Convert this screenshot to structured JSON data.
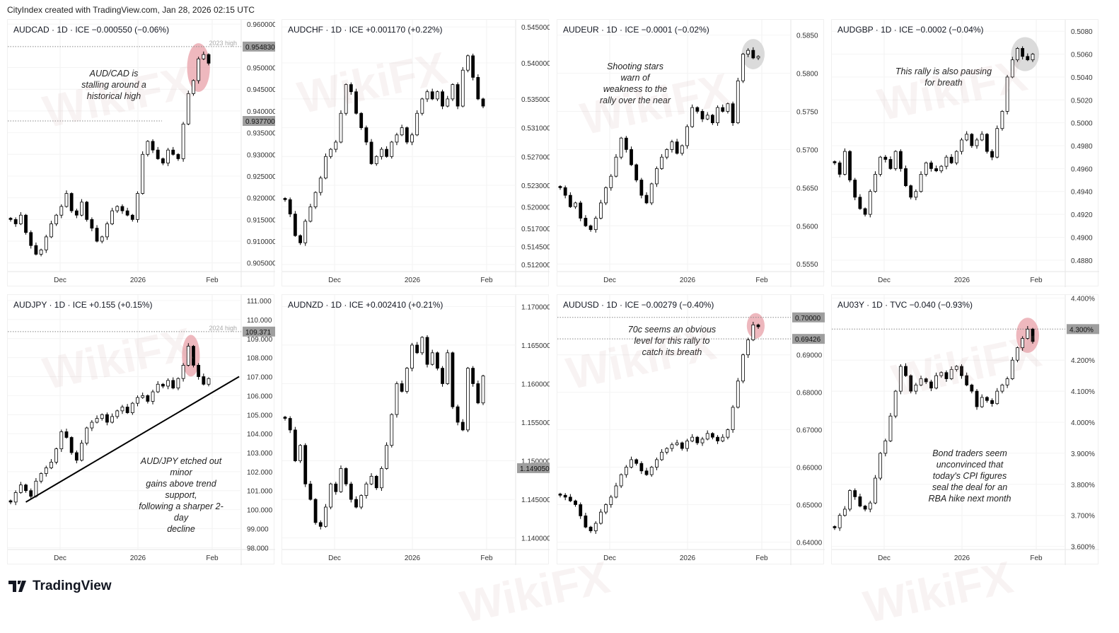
{
  "header": {
    "credit": "CityIndex created with TradingView.com, Jan 28, 2026 02:15 UTC"
  },
  "footer": {
    "logo_text": "TradingView"
  },
  "watermark": {
    "text": "WikiFX"
  },
  "time_axis": [
    "Dec",
    "2026",
    "Feb"
  ],
  "colors": {
    "up_body": "#ffffff",
    "down_body": "#000000",
    "wick": "#000000",
    "badge_bg": "#9e9e9e",
    "highlight_red": "#e8a0a8",
    "highlight_grey": "#cfcfcf",
    "trendline": "#000000"
  },
  "chart_data": [
    {
      "type": "candlestick",
      "title": "AUDCAD · 1D · ICE  −0.000550 (−0.06%)",
      "ylim": [
        0.903,
        0.961
      ],
      "closes": [
        0.915,
        0.914,
        0.916,
        0.912,
        0.909,
        0.907,
        0.908,
        0.911,
        0.914,
        0.916,
        0.918,
        0.921,
        0.917,
        0.916,
        0.919,
        0.915,
        0.913,
        0.91,
        0.911,
        0.914,
        0.917,
        0.918,
        0.917,
        0.916,
        0.915,
        0.921,
        0.93,
        0.933,
        0.931,
        0.929,
        0.928,
        0.931,
        0.93,
        0.929,
        0.937,
        0.944,
        0.947,
        0.952,
        0.953,
        0.951
      ],
      "yticks": [
        "0.960000",
        "0.950000",
        "0.945000",
        "0.940000",
        "0.935000",
        "0.930000",
        "0.925000",
        "0.920000",
        "0.915000",
        "0.910000",
        "0.905000"
      ],
      "badges": [
        "0.954830",
        "0.937700"
      ],
      "levels": [
        {
          "value": 0.95483,
          "label": "2023 high",
          "full": true
        },
        {
          "value": 0.9377,
          "label": "",
          "full": false
        }
      ],
      "highlight": {
        "from": 36,
        "to": 38,
        "color": "red"
      },
      "annotation": "AUD/CAD is\nstalling around a\nhistorical high"
    },
    {
      "type": "candlestick",
      "title": "AUDCHF · 1D · ICE  +0.001170 (+0.22%)",
      "ylim": [
        0.511,
        0.546
      ],
      "closes": [
        0.521,
        0.519,
        0.516,
        0.515,
        0.518,
        0.52,
        0.522,
        0.524,
        0.527,
        0.528,
        0.529,
        0.533,
        0.537,
        0.536,
        0.533,
        0.531,
        0.529,
        0.526,
        0.527,
        0.528,
        0.527,
        0.529,
        0.53,
        0.531,
        0.529,
        0.53,
        0.533,
        0.535,
        0.536,
        0.535,
        0.536,
        0.534,
        0.535,
        0.537,
        0.534,
        0.539,
        0.541,
        0.538,
        0.535,
        0.534
      ],
      "yticks": [
        "0.545000",
        "0.540000",
        "0.535000",
        "0.531000",
        "0.527000",
        "0.523000",
        "0.520000",
        "0.517000",
        "0.514500",
        "0.512000"
      ],
      "badges": [],
      "levels": [],
      "highlight": null,
      "annotation": ""
    },
    {
      "type": "candlestick",
      "title": "AUDEUR · 1D · ICE  −0.0001 (−0.02%)",
      "ylim": [
        0.554,
        0.587
      ],
      "closes": [
        0.565,
        0.564,
        0.5625,
        0.563,
        0.561,
        0.56,
        0.5595,
        0.561,
        0.563,
        0.565,
        0.5665,
        0.569,
        0.5715,
        0.57,
        0.568,
        0.566,
        0.564,
        0.563,
        0.5655,
        0.5675,
        0.569,
        0.57,
        0.571,
        0.5695,
        0.5705,
        0.573,
        0.5755,
        0.575,
        0.574,
        0.5745,
        0.5735,
        0.5755,
        0.575,
        0.576,
        0.5735,
        0.579,
        0.5825,
        0.583,
        0.582,
        0.5822
      ],
      "yticks": [
        "0.5850",
        "0.5800",
        "0.5750",
        "0.5700",
        "0.5650",
        "0.5600",
        "0.5550"
      ],
      "badges": [],
      "levels": [],
      "highlight": {
        "from": 37,
        "to": 39,
        "color": "grey"
      },
      "annotation": "Shooting stars\nwarn of\nweakness to the\nrally over the near"
    },
    {
      "type": "candlestick",
      "title": "AUDGBP · 1D · ICE  −0.0002 (−0.04%)",
      "ylim": [
        0.487,
        0.509
      ],
      "closes": [
        0.4965,
        0.4955,
        0.4975,
        0.495,
        0.4935,
        0.4925,
        0.492,
        0.494,
        0.4955,
        0.497,
        0.4968,
        0.496,
        0.4975,
        0.496,
        0.4945,
        0.4935,
        0.494,
        0.4955,
        0.4965,
        0.496,
        0.4958,
        0.4962,
        0.497,
        0.4965,
        0.4975,
        0.4985,
        0.499,
        0.498,
        0.4985,
        0.499,
        0.4975,
        0.497,
        0.4995,
        0.501,
        0.504,
        0.5055,
        0.5065,
        0.5058,
        0.5055,
        0.506
      ],
      "yticks": [
        "0.5080",
        "0.5060",
        "0.5040",
        "0.5020",
        "0.5000",
        "0.4980",
        "0.4960",
        "0.4940",
        "0.4920",
        "0.4900",
        "0.4880"
      ],
      "badges": [],
      "levels": [],
      "highlight": {
        "from": 36,
        "to": 39,
        "color": "grey"
      },
      "annotation": "This rally is also pausing\nfor breath"
    },
    {
      "type": "candlestick",
      "title": "AUDJPY · 1D · ICE  +0.155 (+0.15%)",
      "ylim": [
        97.9,
        111.3
      ],
      "closes": [
        100.4,
        100.9,
        101.3,
        101.0,
        100.7,
        101.5,
        101.9,
        102.2,
        102.5,
        103.2,
        104.1,
        103.8,
        103.0,
        102.6,
        103.5,
        104.3,
        104.6,
        104.8,
        105.0,
        104.6,
        104.9,
        105.2,
        105.4,
        105.1,
        105.6,
        105.9,
        106.0,
        105.7,
        106.2,
        106.6,
        106.5,
        106.8,
        106.4,
        106.9,
        107.6,
        108.6,
        107.6,
        107.0,
        106.6,
        106.9
      ],
      "yticks": [
        "111.000",
        "110.000",
        "109.000",
        "108.000",
        "107.000",
        "106.000",
        "105.000",
        "104.000",
        "103.000",
        "102.000",
        "101.000",
        "100.000",
        "99.000",
        "98.000"
      ],
      "badges": [
        "109.371"
      ],
      "levels": [
        {
          "value": 109.371,
          "label": "2024 high",
          "full": true
        }
      ],
      "highlight": {
        "from": 35,
        "to": 36,
        "color": "red"
      },
      "trendline": {
        "from": [
          3,
          100.4
        ],
        "to": [
          45,
          107.0
        ]
      },
      "annotation": "AUD/JPY etched out minor\ngains above trend support,\nfollowing a sharper 2-day\ndecline"
    },
    {
      "type": "candlestick",
      "title": "AUDNZD · 1D · ICE  +0.002410 (+0.21%)",
      "ylim": [
        1.1385,
        1.1715
      ],
      "closes": [
        1.1555,
        1.154,
        1.15,
        1.152,
        1.147,
        1.145,
        1.142,
        1.1415,
        1.144,
        1.147,
        1.146,
        1.149,
        1.147,
        1.145,
        1.144,
        1.1455,
        1.147,
        1.148,
        1.1465,
        1.149,
        1.152,
        1.156,
        1.16,
        1.159,
        1.162,
        1.165,
        1.164,
        1.166,
        1.1625,
        1.164,
        1.162,
        1.16,
        1.164,
        1.157,
        1.155,
        1.154,
        1.162,
        1.16,
        1.1575,
        1.161
      ],
      "yticks": [
        "1.170000",
        "1.165000",
        "1.160000",
        "1.155000",
        "1.150000",
        "1.145000",
        "1.140000"
      ],
      "badges": [
        "1.149050"
      ],
      "levels": [],
      "highlight": null,
      "annotation": ""
    },
    {
      "type": "candlestick",
      "title": "AUDUSD · 1D · ICE  −0.00279 (−0.40%)",
      "ylim": [
        0.638,
        0.706
      ],
      "closes": [
        0.6525,
        0.652,
        0.651,
        0.65,
        0.647,
        0.644,
        0.643,
        0.645,
        0.648,
        0.65,
        0.652,
        0.655,
        0.658,
        0.66,
        0.662,
        0.661,
        0.659,
        0.658,
        0.66,
        0.662,
        0.664,
        0.665,
        0.666,
        0.6665,
        0.665,
        0.667,
        0.668,
        0.6665,
        0.6675,
        0.669,
        0.668,
        0.667,
        0.668,
        0.67,
        0.676,
        0.683,
        0.69,
        0.694,
        0.698,
        0.6975
      ],
      "yticks": [
        "0.69000",
        "0.68000",
        "0.67000",
        "0.66000",
        "0.65000",
        "0.64000"
      ],
      "badges": [
        "0.70000",
        "0.69426"
      ],
      "levels": [
        {
          "value": 0.7,
          "label": "",
          "full": true
        },
        {
          "value": 0.69426,
          "label": "",
          "full": true
        }
      ],
      "highlight": {
        "from": 38,
        "to": 39,
        "color": "red"
      },
      "annotation": "70c seems an obvious\nlevel for this rally to\ncatch its breath"
    },
    {
      "type": "candlestick",
      "title": "AU03Y · 1D · TVC  −0.040 (−0.93%)",
      "ylim": [
        3.59,
        4.41
      ],
      "closes": [
        3.66,
        3.7,
        3.72,
        3.78,
        3.76,
        3.73,
        3.72,
        3.74,
        3.82,
        3.9,
        3.94,
        4.02,
        4.1,
        4.18,
        4.15,
        4.1,
        4.12,
        4.14,
        4.13,
        4.11,
        4.15,
        4.16,
        4.14,
        4.17,
        4.18,
        4.15,
        4.12,
        4.1,
        4.05,
        4.08,
        4.07,
        4.06,
        4.1,
        4.12,
        4.14,
        4.2,
        4.24,
        4.27,
        4.3,
        4.26
      ],
      "yticks": [
        "4.400%",
        "4.200%",
        "4.100%",
        "4.000%",
        "3.900%",
        "3.800%",
        "3.700%",
        "3.600%"
      ],
      "badges": [
        "4.300%"
      ],
      "levels": [
        {
          "value": 4.3,
          "label": "",
          "full": true
        }
      ],
      "highlight": {
        "from": 37,
        "to": 39,
        "color": "red"
      },
      "annotation": "Bond traders seem\nunconvinced that\ntoday's CPI figures\nseal the deal for an\nRBA hike next month"
    }
  ]
}
